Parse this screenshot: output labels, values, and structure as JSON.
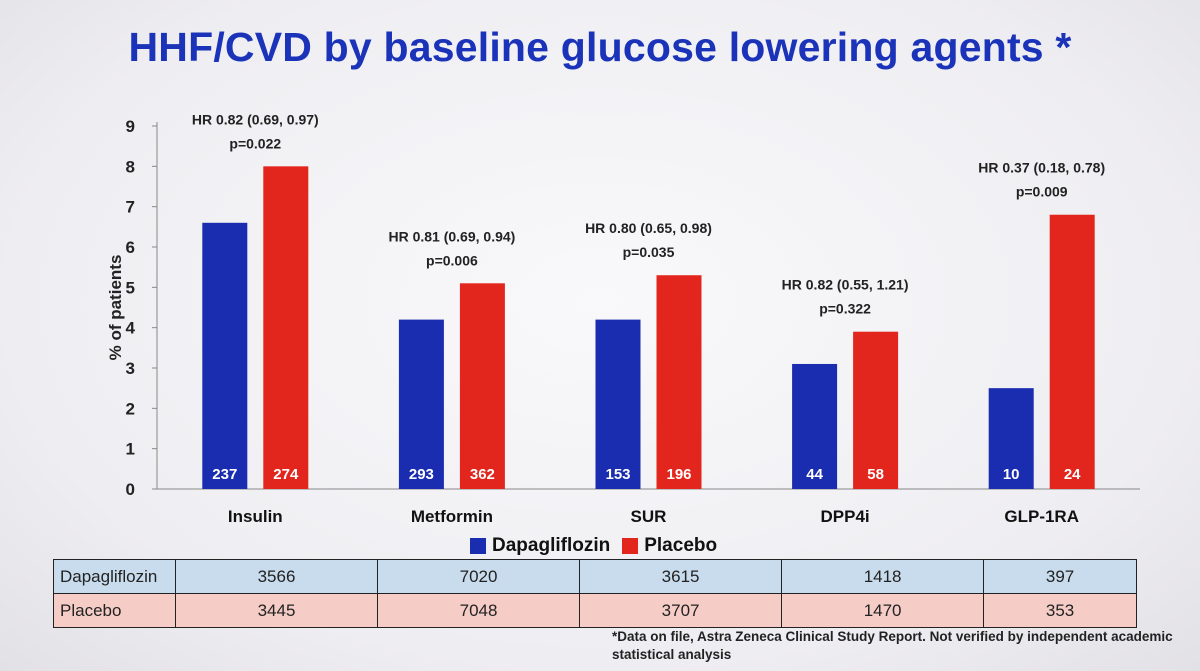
{
  "title": "HHF/CVD  by baseline glucose lowering agents *",
  "chart_data": {
    "type": "bar",
    "ylabel": "% of patients",
    "xlabel": "",
    "ylim": [
      0,
      9
    ],
    "yticks": [
      0,
      1,
      2,
      3,
      4,
      5,
      6,
      7,
      8,
      9
    ],
    "categories": [
      "Insulin",
      "Metformin",
      "SUR",
      "DPP4i",
      "GLP-1RA"
    ],
    "series": [
      {
        "name": "Dapagliflozin",
        "color": "#1a2cb0",
        "values": [
          6.6,
          4.2,
          4.2,
          3.1,
          2.5
        ],
        "event_counts": [
          "237",
          "293",
          "153",
          "44",
          "10"
        ]
      },
      {
        "name": "Placebo",
        "color": "#e3261d",
        "values": [
          8.0,
          5.1,
          5.3,
          3.9,
          6.8
        ],
        "event_counts": [
          "274",
          "362",
          "196",
          "58",
          "24"
        ]
      }
    ],
    "annotations": [
      {
        "hr": "HR 0.82 (0.69, 0.97)",
        "p": "p=0.022"
      },
      {
        "hr": "HR 0.81 (0.69, 0.94)",
        "p": "p=0.006"
      },
      {
        "hr": "HR 0.80 (0.65, 0.98)",
        "p": "p=0.035"
      },
      {
        "hr": "HR 0.82 (0.55, 1.21)",
        "p": "p=0.322"
      },
      {
        "hr": "HR 0.37 (0.18, 0.78)",
        "p": "p=0.009"
      }
    ],
    "legend_placement": "bottom"
  },
  "table": {
    "rows": [
      {
        "label": "Dapagliflozin",
        "values": [
          "3566",
          "7020",
          "3615",
          "1418",
          "397"
        ]
      },
      {
        "label": "Placebo",
        "values": [
          "3445",
          "7048",
          "3707",
          "1470",
          "353"
        ]
      }
    ]
  },
  "footnote": "*Data on file, Astra Zeneca Clinical Study Report. Not verified by independent academic statistical analysis"
}
